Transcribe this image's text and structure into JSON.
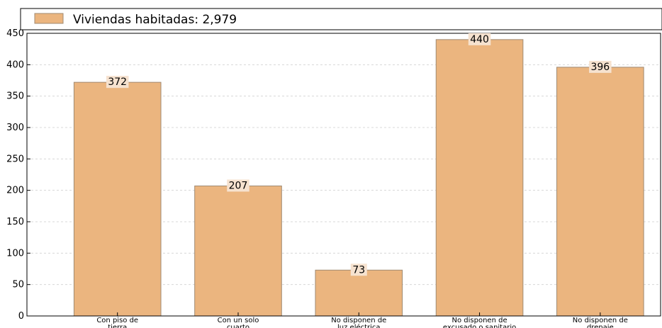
{
  "chart_data": {
    "type": "bar",
    "legend": {
      "label": "Viviendas habitadas: 2,979",
      "placement": "top-left"
    },
    "categories": [
      [
        "Con piso de",
        "tierra"
      ],
      [
        "Con un solo",
        "cuarto"
      ],
      [
        "No disponen de",
        "luz eléctrica"
      ],
      [
        "No disponen de",
        "excusado o sanitario"
      ],
      [
        "No disponen de",
        "drenaje"
      ]
    ],
    "values": [
      372,
      207,
      73,
      440,
      396
    ],
    "data_labels": [
      "372",
      "207",
      "73",
      "440",
      "396"
    ],
    "ylim": [
      0,
      450
    ],
    "yticks": [
      0,
      50,
      100,
      150,
      200,
      250,
      300,
      350,
      400,
      450
    ],
    "ytick_labels": [
      "0",
      "50",
      "100",
      "150",
      "200",
      "250",
      "300",
      "350",
      "400",
      "450"
    ],
    "grid": true,
    "colors": {
      "bar": "#ebb57f",
      "bar_edge": "#a08a72",
      "label_bg": "#f6e2cf",
      "grid": "#d8d8d8"
    }
  }
}
